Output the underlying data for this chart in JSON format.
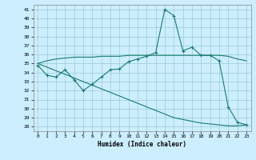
{
  "title": "",
  "xlabel": "Humidex (Indice chaleur)",
  "background_color": "#cceeff",
  "grid_color": "#99cccc",
  "line_color": "#1a7a6e",
  "xlim": [
    -0.5,
    23.5
  ],
  "ylim": [
    27.5,
    41.5
  ],
  "yticks": [
    28,
    29,
    30,
    31,
    32,
    33,
    34,
    35,
    36,
    37,
    38,
    39,
    40,
    41
  ],
  "xticks": [
    0,
    1,
    2,
    3,
    4,
    5,
    6,
    7,
    8,
    9,
    10,
    11,
    12,
    13,
    14,
    15,
    16,
    17,
    18,
    19,
    20,
    21,
    22,
    23
  ],
  "line1": [
    34.8,
    33.7,
    33.5,
    34.3,
    33.2,
    32.0,
    32.7,
    33.5,
    34.3,
    34.4,
    35.2,
    35.5,
    35.8,
    36.2,
    41.0,
    40.3,
    36.4,
    36.8,
    35.9,
    35.9,
    35.3,
    30.2,
    28.5,
    28.2
  ],
  "line2": [
    35.0,
    35.3,
    35.5,
    35.6,
    35.7,
    35.7,
    35.7,
    35.8,
    35.8,
    35.8,
    35.9,
    35.9,
    35.9,
    35.9,
    35.9,
    35.9,
    35.9,
    35.9,
    35.9,
    35.9,
    35.9,
    35.8,
    35.5,
    35.3
  ],
  "line3": [
    35.0,
    34.6,
    34.2,
    33.8,
    33.4,
    33.0,
    32.6,
    32.2,
    31.8,
    31.4,
    31.0,
    30.6,
    30.2,
    29.8,
    29.4,
    29.0,
    28.8,
    28.6,
    28.4,
    28.3,
    28.2,
    28.1,
    28.1,
    28.2
  ]
}
